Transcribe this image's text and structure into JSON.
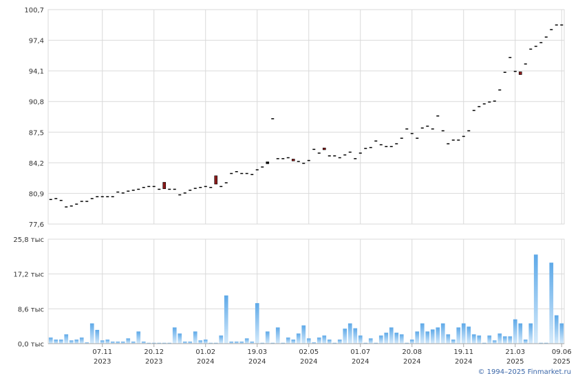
{
  "chart_data": [
    {
      "type": "candlestick",
      "panel": "price",
      "ylim": [
        77.6,
        100.7
      ],
      "y_ticks": [
        "100,7",
        "97,4",
        "94,1",
        "90,8",
        "87,5",
        "84,2",
        "80,9",
        "77,6"
      ],
      "y_tick_values": [
        100.7,
        97.4,
        94.1,
        90.8,
        87.5,
        84.2,
        80.9,
        77.6
      ],
      "grid": true,
      "bars": [
        {
          "x": 0,
          "o": 80.3,
          "c": 80.3
        },
        {
          "x": 1,
          "o": 80.4,
          "c": 80.4
        },
        {
          "x": 2,
          "o": 80.2,
          "c": 80.2
        },
        {
          "x": 3,
          "o": 79.5,
          "c": 79.5
        },
        {
          "x": 4,
          "o": 79.6,
          "c": 79.6
        },
        {
          "x": 5,
          "o": 79.8,
          "c": 79.8
        },
        {
          "x": 6,
          "o": 80.1,
          "c": 80.1
        },
        {
          "x": 7,
          "o": 80.1,
          "c": 80.1
        },
        {
          "x": 8,
          "o": 80.4,
          "c": 80.4
        },
        {
          "x": 9,
          "o": 80.6,
          "c": 80.6
        },
        {
          "x": 10,
          "o": 80.6,
          "c": 80.6
        },
        {
          "x": 11,
          "o": 80.6,
          "c": 80.6
        },
        {
          "x": 12,
          "o": 80.6,
          "c": 80.6
        },
        {
          "x": 13,
          "o": 81.1,
          "c": 81.1
        },
        {
          "x": 14,
          "o": 81.0,
          "c": 81.0
        },
        {
          "x": 15,
          "o": 81.2,
          "c": 81.2
        },
        {
          "x": 16,
          "o": 81.3,
          "c": 81.3
        },
        {
          "x": 17,
          "o": 81.4,
          "c": 81.4
        },
        {
          "x": 18,
          "o": 81.6,
          "c": 81.6
        },
        {
          "x": 19,
          "o": 81.7,
          "c": 81.7
        },
        {
          "x": 20,
          "o": 81.7,
          "c": 81.7
        },
        {
          "x": 21,
          "o": 81.4,
          "c": 81.4
        },
        {
          "x": 22,
          "o": 82.1,
          "c": 81.4
        },
        {
          "x": 23,
          "o": 81.4,
          "c": 81.4
        },
        {
          "x": 24,
          "o": 81.4,
          "c": 81.4
        },
        {
          "x": 25,
          "o": 80.8,
          "c": 80.8
        },
        {
          "x": 26,
          "o": 81.0,
          "c": 81.0
        },
        {
          "x": 27,
          "o": 81.3,
          "c": 81.3
        },
        {
          "x": 28,
          "o": 81.5,
          "c": 81.5
        },
        {
          "x": 29,
          "o": 81.6,
          "c": 81.6
        },
        {
          "x": 30,
          "o": 81.7,
          "c": 81.7
        },
        {
          "x": 31,
          "o": 81.6,
          "c": 81.6
        },
        {
          "x": 32,
          "o": 82.8,
          "c": 81.9
        },
        {
          "x": 33,
          "o": 81.7,
          "c": 81.7
        },
        {
          "x": 34,
          "o": 82.1,
          "c": 82.1
        },
        {
          "x": 35,
          "o": 83.1,
          "c": 83.1
        },
        {
          "x": 36,
          "o": 83.3,
          "c": 83.3
        },
        {
          "x": 37,
          "o": 83.1,
          "c": 83.1
        },
        {
          "x": 38,
          "o": 83.1,
          "c": 83.1
        },
        {
          "x": 39,
          "o": 83.0,
          "c": 83.0
        },
        {
          "x": 40,
          "o": 83.5,
          "c": 83.5
        },
        {
          "x": 41,
          "o": 83.8,
          "c": 83.8
        },
        {
          "x": 42,
          "o": 84.1,
          "c": 84.3
        },
        {
          "x": 43,
          "o": 89.0,
          "c": 89.0
        },
        {
          "x": 44,
          "o": 84.7,
          "c": 84.7
        },
        {
          "x": 45,
          "o": 84.7,
          "c": 84.7
        },
        {
          "x": 46,
          "o": 84.8,
          "c": 84.8
        },
        {
          "x": 47,
          "o": 84.6,
          "c": 84.4
        },
        {
          "x": 48,
          "o": 84.4,
          "c": 84.4
        },
        {
          "x": 49,
          "o": 84.2,
          "c": 84.2
        },
        {
          "x": 50,
          "o": 84.5,
          "c": 84.5
        },
        {
          "x": 51,
          "o": 85.7,
          "c": 85.7
        },
        {
          "x": 52,
          "o": 85.3,
          "c": 85.3
        },
        {
          "x": 53,
          "o": 85.8,
          "c": 85.6
        },
        {
          "x": 54,
          "o": 85.0,
          "c": 85.0
        },
        {
          "x": 55,
          "o": 85.0,
          "c": 85.0
        },
        {
          "x": 56,
          "o": 84.8,
          "c": 84.8
        },
        {
          "x": 57,
          "o": 85.1,
          "c": 85.1
        },
        {
          "x": 58,
          "o": 85.4,
          "c": 85.4
        },
        {
          "x": 59,
          "o": 84.7,
          "c": 84.7
        },
        {
          "x": 60,
          "o": 85.3,
          "c": 85.3
        },
        {
          "x": 61,
          "o": 85.8,
          "c": 85.8
        },
        {
          "x": 62,
          "o": 85.9,
          "c": 85.9
        },
        {
          "x": 63,
          "o": 86.6,
          "c": 86.6
        },
        {
          "x": 64,
          "o": 86.2,
          "c": 86.2
        },
        {
          "x": 65,
          "o": 86.0,
          "c": 86.0
        },
        {
          "x": 66,
          "o": 86.0,
          "c": 86.0
        },
        {
          "x": 67,
          "o": 86.3,
          "c": 86.3
        },
        {
          "x": 68,
          "o": 86.9,
          "c": 86.9
        },
        {
          "x": 69,
          "o": 87.9,
          "c": 87.9
        },
        {
          "x": 70,
          "o": 87.4,
          "c": 87.4
        },
        {
          "x": 71,
          "o": 86.9,
          "c": 86.9
        },
        {
          "x": 72,
          "o": 88.0,
          "c": 88.0
        },
        {
          "x": 73,
          "o": 88.2,
          "c": 88.2
        },
        {
          "x": 74,
          "o": 87.9,
          "c": 87.9
        },
        {
          "x": 75,
          "o": 89.3,
          "c": 89.3
        },
        {
          "x": 76,
          "o": 87.7,
          "c": 87.7
        },
        {
          "x": 77,
          "o": 86.3,
          "c": 86.3
        },
        {
          "x": 78,
          "o": 86.7,
          "c": 86.7
        },
        {
          "x": 79,
          "o": 86.7,
          "c": 86.7
        },
        {
          "x": 80,
          "o": 87.1,
          "c": 87.1
        },
        {
          "x": 81,
          "o": 87.7,
          "c": 87.7
        },
        {
          "x": 82,
          "o": 89.9,
          "c": 89.9
        },
        {
          "x": 83,
          "o": 90.3,
          "c": 90.3
        },
        {
          "x": 84,
          "o": 90.6,
          "c": 90.6
        },
        {
          "x": 85,
          "o": 90.8,
          "c": 90.8
        },
        {
          "x": 86,
          "o": 90.9,
          "c": 90.9
        },
        {
          "x": 87,
          "o": 92.1,
          "c": 92.1
        },
        {
          "x": 88,
          "o": 94.0,
          "c": 94.0
        },
        {
          "x": 89,
          "o": 95.6,
          "c": 95.6
        },
        {
          "x": 90,
          "o": 94.1,
          "c": 94.1
        },
        {
          "x": 91,
          "o": 94.0,
          "c": 93.7
        },
        {
          "x": 92,
          "o": 94.9,
          "c": 94.9
        },
        {
          "x": 93,
          "o": 96.5,
          "c": 96.5
        },
        {
          "x": 94,
          "o": 96.8,
          "c": 96.8
        },
        {
          "x": 95,
          "o": 97.2,
          "c": 97.2
        },
        {
          "x": 96,
          "o": 97.8,
          "c": 97.8
        },
        {
          "x": 97,
          "o": 98.6,
          "c": 98.6
        },
        {
          "x": 98,
          "o": 99.1,
          "c": 99.1
        },
        {
          "x": 99,
          "o": 99.1,
          "c": 99.1
        }
      ]
    },
    {
      "type": "bar",
      "panel": "volume",
      "ylim": [
        0,
        25.8
      ],
      "y_ticks": [
        "25,8 тыс",
        "17,2 тыс",
        "8,6 тыс",
        "0,0 тыс"
      ],
      "y_tick_values": [
        25.8,
        17.2,
        8.6,
        0
      ],
      "grid": true,
      "values": [
        1.5,
        1.0,
        1.0,
        2.3,
        0.8,
        1.0,
        1.5,
        0.3,
        5.0,
        3.4,
        0.8,
        1.0,
        0.5,
        0.5,
        0.5,
        1.3,
        0.5,
        3.0,
        0.5,
        0.2,
        0.2,
        0.2,
        0.2,
        0.2,
        4.0,
        2.5,
        0.5,
        0.5,
        3.0,
        0.8,
        1.0,
        0.2,
        0.2,
        2.0,
        11.9,
        0.5,
        0.5,
        0.5,
        1.3,
        0.5,
        10.0,
        0.2,
        3.0,
        0.2,
        4.0,
        0.2,
        1.5,
        1.0,
        2.5,
        4.5,
        1.3,
        0.3,
        1.5,
        2.0,
        1.0,
        0.2,
        1.0,
        3.7,
        5.0,
        3.8,
        2.0,
        0.2,
        1.3,
        0.2,
        2.0,
        2.7,
        4.0,
        2.7,
        2.3,
        0.2,
        1.0,
        3.0,
        5.0,
        3.0,
        3.5,
        4.0,
        5.0,
        2.3,
        1.0,
        4.0,
        5.0,
        4.2,
        2.3,
        2.0,
        0.2,
        2.0,
        0.8,
        2.5,
        1.8,
        1.8,
        6.0,
        5.0,
        1.0,
        5.0,
        22.0,
        0.2,
        0.2,
        20.0,
        7.0,
        5.0
      ]
    }
  ],
  "x_axis": {
    "categories": [
      {
        "date": "07.11",
        "year": "2023"
      },
      {
        "date": "20.12",
        "year": "2023"
      },
      {
        "date": "01.02",
        "year": "2024"
      },
      {
        "date": "19.03",
        "year": "2024"
      },
      {
        "date": "02.05",
        "year": "2024"
      },
      {
        "date": "01.07",
        "year": "2024"
      },
      {
        "date": "20.08",
        "year": "2024"
      },
      {
        "date": "19.11",
        "year": "2024"
      },
      {
        "date": "21.03",
        "year": "2025"
      },
      {
        "date": "09.06",
        "year": "2025"
      }
    ],
    "label_positions": [
      10,
      20,
      30,
      40,
      50,
      60,
      70,
      80,
      90,
      99
    ]
  },
  "colors": {
    "grid": "#d9d9d9",
    "axis": "#a6a6a6",
    "tick_text": "#333333",
    "candle": "#000000",
    "candle_down": "#8b1a1a",
    "volume_top": "#5ea9e8",
    "volume_bottom": "#d6ebfb"
  },
  "footer": {
    "copyright": "© 1994–2025 Finmarket.ru"
  }
}
